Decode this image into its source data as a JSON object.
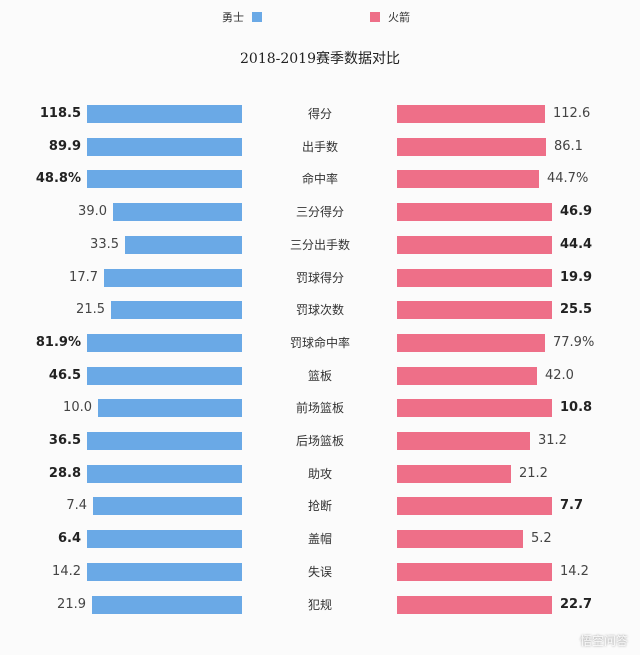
{
  "legend": {
    "left": "勇士",
    "right": "火箭"
  },
  "colors": {
    "left": "#6aa9e6",
    "right": "#ee6f88"
  },
  "watermark": "悟空问答",
  "chart_data": {
    "type": "bar",
    "title": "2018-2019赛季数据对比",
    "series": [
      {
        "name": "勇士",
        "values": [
          118.5,
          89.9,
          48.8,
          39.0,
          33.5,
          17.7,
          21.5,
          81.9,
          46.5,
          10.0,
          36.5,
          28.8,
          7.4,
          6.4,
          14.2,
          21.9
        ]
      },
      {
        "name": "火箭",
        "values": [
          112.6,
          86.1,
          44.7,
          46.9,
          44.4,
          19.9,
          25.5,
          77.9,
          42.0,
          10.8,
          31.2,
          21.2,
          7.7,
          5.2,
          14.2,
          22.7
        ]
      }
    ],
    "categories": [
      "得分",
      "出手数",
      "命中率",
      "三分得分",
      "三分出手数",
      "罚球得分",
      "罚球次数",
      "罚球命中率",
      "篮板",
      "前场篮板",
      "后场篮板",
      "助攻",
      "抢断",
      "盖帽",
      "失误",
      "犯规"
    ],
    "left_labels": [
      "118.5",
      "89.9",
      "48.8%",
      "39.0",
      "33.5",
      "17.7",
      "21.5",
      "81.9%",
      "46.5",
      "10.0",
      "36.5",
      "28.8",
      "7.4",
      "6.4",
      "14.2",
      "21.9"
    ],
    "right_labels": [
      "112.6",
      "86.1",
      "44.7%",
      "46.9",
      "44.4",
      "19.9",
      "25.5",
      "77.9%",
      "42.0",
      "10.8",
      "31.2",
      "21.2",
      "7.7",
      "5.2",
      "14.2",
      "22.7"
    ],
    "left_bold": [
      true,
      true,
      true,
      false,
      false,
      false,
      false,
      true,
      true,
      false,
      true,
      true,
      false,
      true,
      false,
      false
    ],
    "right_bold": [
      false,
      false,
      false,
      true,
      true,
      true,
      true,
      false,
      false,
      true,
      false,
      false,
      true,
      false,
      false,
      true
    ]
  }
}
